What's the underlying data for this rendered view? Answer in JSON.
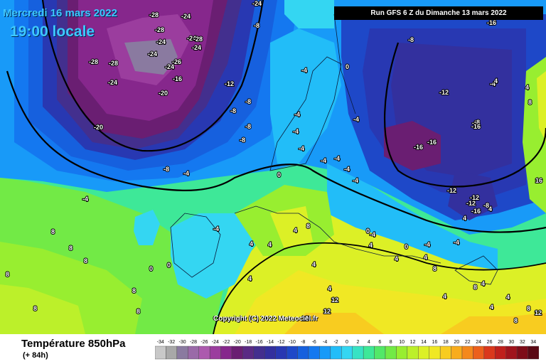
{
  "header": {
    "date": "Mercredi 16 mars 2022",
    "local_time": "19:00 locale",
    "run_info": "Run GFS 6 Z du Dimanche 13 mars 2022"
  },
  "copyright": "Copyright (C) 2022 Meteociel.fr",
  "footer": {
    "parameter": "Température 850hPa",
    "lead_time": "(+ 84h)"
  },
  "colors": {
    "ocean_background": "#33d9f0",
    "warm_land": "#f5ea22",
    "cold_core": "#4a1e78",
    "header_text": "#3ec8ff"
  },
  "scale": {
    "ticks": [
      "-34",
      "-32",
      "-30",
      "-28",
      "-26",
      "-24",
      "-22",
      "-20",
      "-18",
      "-16",
      "-14",
      "-12",
      "-10",
      "-8",
      "-6",
      "-4",
      "-2",
      "0",
      "2",
      "4",
      "6",
      "8",
      "10",
      "12",
      "14",
      "16",
      "18",
      "20",
      "22",
      "24",
      "26",
      "28",
      "30",
      "32",
      "34"
    ],
    "colors": [
      "#c8c8c8",
      "#a8a8a8",
      "#8a7aa0",
      "#9a6aa8",
      "#ac5aae",
      "#9b3d9e",
      "#86278c",
      "#6a1e72",
      "#5a2a84",
      "#432f8e",
      "#33309e",
      "#2838b2",
      "#1e48c8",
      "#1660de",
      "#1478f0",
      "#189af8",
      "#22bdf8",
      "#34d6f2",
      "#38e2c4",
      "#3ee898",
      "#52e868",
      "#72ea46",
      "#98ee30",
      "#bcf02a",
      "#dcf026",
      "#f0e824",
      "#f8cc20",
      "#f8ac1c",
      "#f4881c",
      "#ec601c",
      "#da381c",
      "#c0201c",
      "#a0141c",
      "#7e0c18",
      "#5a0814"
    ]
  },
  "contour_labels": [
    {
      "text": "-24"
    },
    {
      "text": "-28"
    },
    {
      "text": "-28"
    },
    {
      "text": "-24"
    },
    {
      "text": "-24"
    },
    {
      "text": "-24"
    },
    {
      "text": "-28"
    },
    {
      "text": "-24"
    },
    {
      "text": "-24"
    },
    {
      "text": "-16"
    },
    {
      "text": "-20"
    },
    {
      "text": "-24"
    },
    {
      "text": "-28"
    },
    {
      "text": "-28"
    },
    {
      "text": "-26"
    },
    {
      "text": "-24"
    },
    {
      "text": "-12"
    },
    {
      "text": "-8"
    },
    {
      "text": "-8"
    },
    {
      "text": "-8"
    },
    {
      "text": "-20"
    },
    {
      "text": "-8"
    },
    {
      "text": "-8"
    },
    {
      "text": "-4"
    },
    {
      "text": "-4"
    },
    {
      "text": "-4"
    },
    {
      "text": "-4"
    },
    {
      "text": "0"
    },
    {
      "text": "0"
    },
    {
      "text": "-8"
    },
    {
      "text": "-8"
    },
    {
      "text": "-16"
    },
    {
      "text": "-12"
    },
    {
      "text": "-4"
    },
    {
      "text": "-8"
    },
    {
      "text": "-12"
    },
    {
      "text": "-16"
    },
    {
      "text": "-16"
    },
    {
      "text": "-8"
    },
    {
      "text": "-12"
    },
    {
      "text": "-12"
    },
    {
      "text": "-16"
    },
    {
      "text": "-8"
    },
    {
      "text": "-4"
    },
    {
      "text": "-4"
    },
    {
      "text": "-4"
    },
    {
      "text": "-4"
    },
    {
      "text": "-4"
    },
    {
      "text": "-4"
    },
    {
      "text": "-4"
    },
    {
      "text": "-4"
    },
    {
      "text": "-4"
    },
    {
      "text": "0"
    },
    {
      "text": "0"
    },
    {
      "text": "4"
    },
    {
      "text": "4"
    },
    {
      "text": "4"
    },
    {
      "text": "8"
    },
    {
      "text": "8"
    },
    {
      "text": "8"
    },
    {
      "text": "8"
    },
    {
      "text": "8"
    },
    {
      "text": "8"
    },
    {
      "text": "8"
    },
    {
      "text": "4"
    },
    {
      "text": "4"
    },
    {
      "text": "0"
    },
    {
      "text": "0"
    },
    {
      "text": "4"
    },
    {
      "text": "8"
    },
    {
      "text": "4"
    },
    {
      "text": "12"
    },
    {
      "text": "12"
    },
    {
      "text": "12"
    },
    {
      "text": "4"
    },
    {
      "text": "4"
    },
    {
      "text": "4"
    },
    {
      "text": "4"
    },
    {
      "text": "4"
    },
    {
      "text": "4"
    },
    {
      "text": "8"
    },
    {
      "text": "8"
    },
    {
      "text": "8"
    },
    {
      "text": "12"
    },
    {
      "text": "4"
    },
    {
      "text": "4"
    },
    {
      "text": "8"
    },
    {
      "text": "16"
    },
    {
      "text": "8"
    },
    {
      "text": "4"
    },
    {
      "text": "4"
    },
    {
      "text": "-4"
    },
    {
      "text": "-4"
    },
    {
      "text": "-16"
    }
  ]
}
